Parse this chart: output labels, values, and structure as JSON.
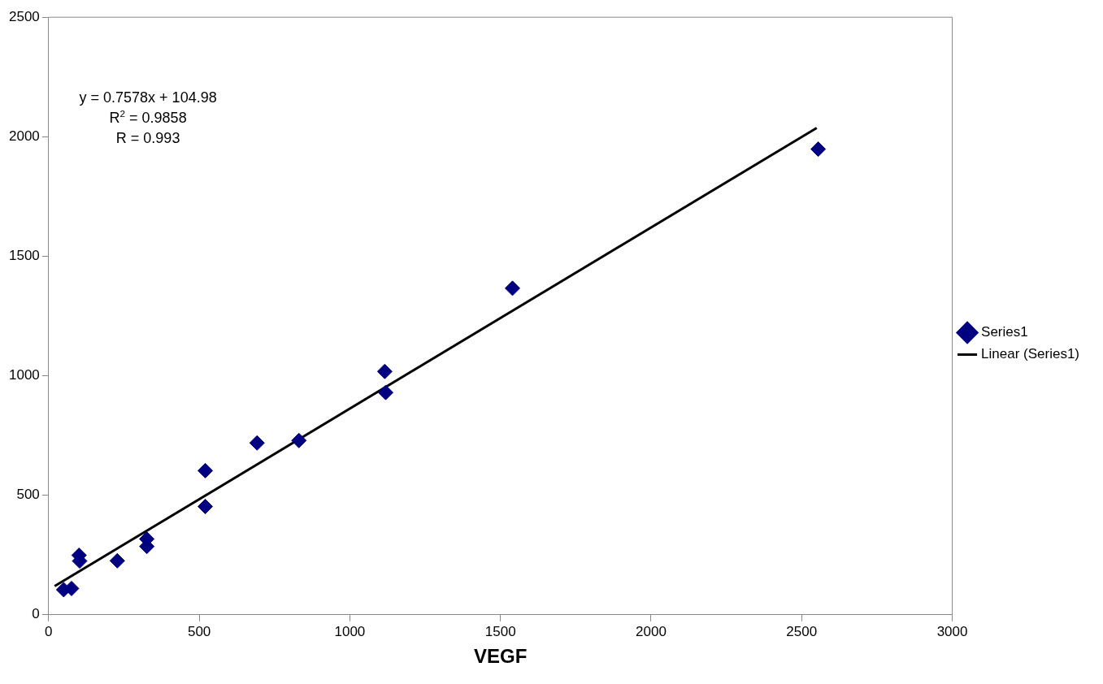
{
  "chart_data": {
    "type": "scatter",
    "xlabel": "VEGF",
    "xlim": [
      0,
      3000
    ],
    "xticks": [
      0,
      500,
      1000,
      1500,
      2000,
      2500,
      3000
    ],
    "ylim": [
      0,
      2500
    ],
    "yticks": [
      0,
      500,
      1000,
      1500,
      2000,
      2500
    ],
    "grid": false,
    "legend": "right",
    "marker": "diamond",
    "annotations": [
      "y = 0.7578x + 104.98",
      "R$^{2}$ = 0.9858",
      "R = 0.993"
    ],
    "series": [
      {
        "name": "Series1",
        "color": "#000080",
        "x": [
          50,
          76,
          101,
          103,
          228,
          326,
          326,
          520,
          520,
          692,
          831,
          1116,
          1119,
          1540,
          2555
        ],
        "values": [
          105,
          110,
          249,
          225,
          226,
          317,
          286,
          603,
          453,
          719,
          729,
          1018,
          930,
          1366,
          1948
        ]
      },
      {
        "name": "Linear (Series1)",
        "type": "line",
        "color": "#000000",
        "marker": "none",
        "x": [
          20,
          2550
        ],
        "values": [
          120,
          2037
        ]
      }
    ]
  }
}
